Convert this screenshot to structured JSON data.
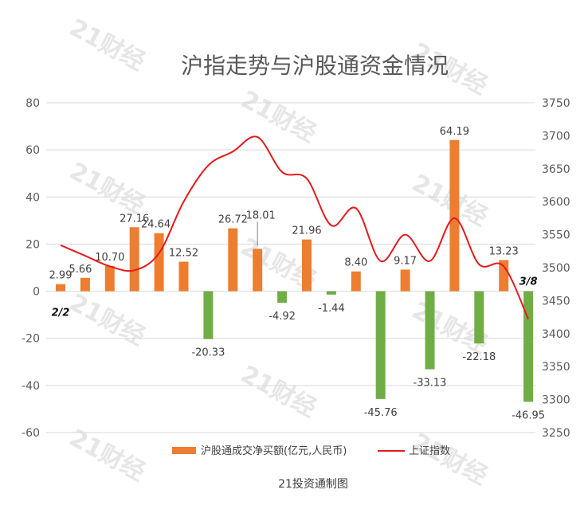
{
  "chart_data": {
    "type": "bar+line",
    "title": "沪指走势与沪股通资金情况",
    "source": "21投资通制图",
    "watermark": "21财经",
    "left_axis": {
      "ylim": [
        -60,
        80
      ],
      "ticks": [
        "80",
        "60",
        "40",
        "20",
        "0",
        "-20",
        "-40",
        "-60"
      ]
    },
    "right_axis": {
      "ylim": [
        3250,
        3750
      ],
      "ticks": [
        "3750",
        "3700",
        "3650",
        "3600",
        "3550",
        "3500",
        "3450",
        "3400",
        "3350",
        "3300",
        "3250"
      ]
    },
    "bar_series": {
      "name": "沪股通成交净买额(亿元,人民币)",
      "values": [
        2.99,
        5.66,
        10.7,
        27.16,
        24.64,
        12.52,
        -20.33,
        26.72,
        18.01,
        -4.92,
        21.96,
        -1.44,
        8.4,
        -45.76,
        9.17,
        -33.13,
        64.19,
        -22.18,
        13.23,
        -46.95
      ],
      "labels": [
        "2.99",
        "5.66",
        "10.70",
        "27.16",
        "24.64",
        "12.52",
        "-20.33",
        "26.72",
        "18.01",
        "-4.92",
        "21.96",
        "-1.44",
        "8.40",
        "-45.76",
        "9.17",
        "-33.13",
        "64.19",
        "-22.18",
        "13.23",
        "-46.95"
      ],
      "positive_color": "#ed7d31",
      "negative_color": "#70ad47"
    },
    "line_series": {
      "name": "上证指数",
      "color": "#e31a1c",
      "values": [
        3534,
        3518,
        3502,
        3496,
        3522,
        3600,
        3655,
        3676,
        3698,
        3645,
        3635,
        3564,
        3590,
        3510,
        3550,
        3510,
        3575,
        3505,
        3502,
        3422
      ]
    },
    "category_labels": {
      "first": "2/2",
      "last": "3/8"
    },
    "legend_position": "bottom",
    "grid": true
  }
}
